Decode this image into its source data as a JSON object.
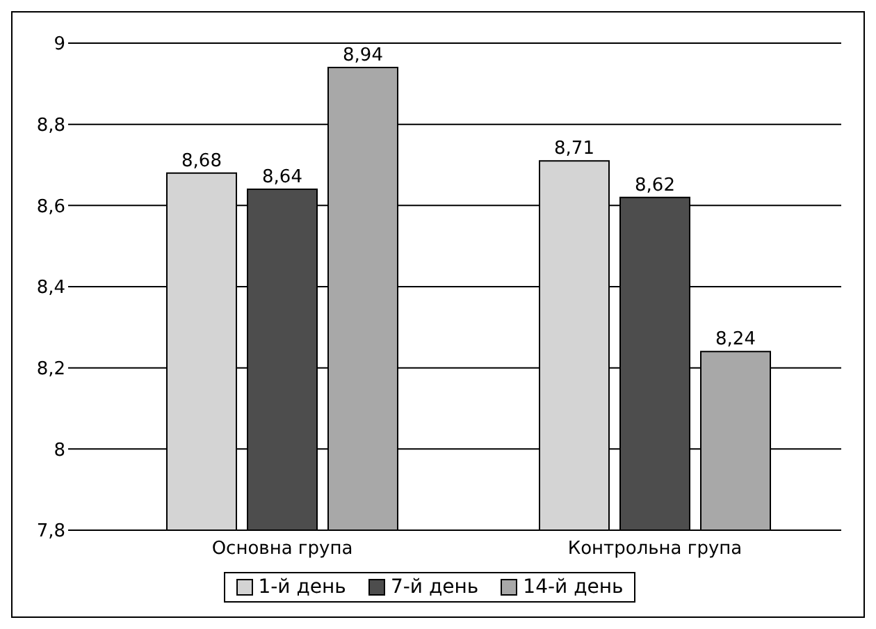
{
  "chart_data": {
    "type": "bar",
    "categories": [
      "Основна група",
      "Контрольна група"
    ],
    "series": [
      {
        "name": "1-й день",
        "color": "#d4d4d4",
        "values": [
          8.68,
          8.71
        ],
        "value_labels": [
          "8,68",
          "8,71"
        ]
      },
      {
        "name": "7-й день",
        "color": "#4d4d4d",
        "values": [
          8.64,
          8.62
        ],
        "value_labels": [
          "8,64",
          "8,62"
        ]
      },
      {
        "name": "14-й день",
        "color": "#a8a8a8",
        "values": [
          8.94,
          8.24
        ],
        "value_labels": [
          "8,94",
          "8,24"
        ]
      }
    ],
    "ylim": [
      7.8,
      9
    ],
    "yticks": [
      {
        "value": 7.8,
        "label": "7,8"
      },
      8,
      {
        "value": 8.2,
        "label": "8,2"
      },
      {
        "value": 8.4,
        "label": "8,4"
      },
      {
        "value": 8.6,
        "label": "8,6"
      },
      {
        "value": 8.8,
        "label": "8,8"
      },
      9
    ],
    "grid": "y",
    "legend": "bottom"
  }
}
